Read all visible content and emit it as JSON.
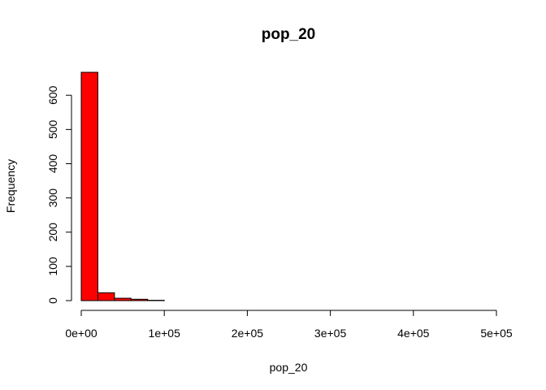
{
  "chart_data": {
    "type": "bar",
    "title": "pop_20",
    "xlabel": "pop_20",
    "ylabel": "Frequency",
    "bin_width": 20000,
    "bins": [
      {
        "start": 0,
        "end": 20000,
        "count": 667
      },
      {
        "start": 20000,
        "end": 40000,
        "count": 23
      },
      {
        "start": 40000,
        "end": 60000,
        "count": 7
      },
      {
        "start": 60000,
        "end": 80000,
        "count": 4
      },
      {
        "start": 80000,
        "end": 100000,
        "count": 1
      },
      {
        "start": 100000,
        "end": 120000,
        "count": 0
      },
      {
        "start": 120000,
        "end": 140000,
        "count": 0
      },
      {
        "start": 140000,
        "end": 160000,
        "count": 0
      },
      {
        "start": 160000,
        "end": 180000,
        "count": 0
      },
      {
        "start": 180000,
        "end": 200000,
        "count": 0
      },
      {
        "start": 200000,
        "end": 220000,
        "count": 0
      },
      {
        "start": 220000,
        "end": 240000,
        "count": 0
      },
      {
        "start": 240000,
        "end": 260000,
        "count": 0
      },
      {
        "start": 260000,
        "end": 280000,
        "count": 0
      },
      {
        "start": 280000,
        "end": 300000,
        "count": 0
      },
      {
        "start": 300000,
        "end": 320000,
        "count": 0
      },
      {
        "start": 320000,
        "end": 340000,
        "count": 0
      },
      {
        "start": 340000,
        "end": 360000,
        "count": 0
      },
      {
        "start": 360000,
        "end": 380000,
        "count": 0
      },
      {
        "start": 380000,
        "end": 400000,
        "count": 0
      },
      {
        "start": 400000,
        "end": 420000,
        "count": 0
      },
      {
        "start": 420000,
        "end": 440000,
        "count": 0
      },
      {
        "start": 440000,
        "end": 460000,
        "count": 0
      },
      {
        "start": 460000,
        "end": 480000,
        "count": 0
      },
      {
        "start": 480000,
        "end": 500000,
        "count": 0
      }
    ],
    "xlim": [
      0,
      500000
    ],
    "ylim": [
      0,
      667
    ],
    "x_ticks": [
      {
        "value": 0,
        "label": "0e+00"
      },
      {
        "value": 100000,
        "label": "1e+05"
      },
      {
        "value": 200000,
        "label": "2e+05"
      },
      {
        "value": 300000,
        "label": "3e+05"
      },
      {
        "value": 400000,
        "label": "4e+05"
      },
      {
        "value": 500000,
        "label": "5e+05"
      }
    ],
    "y_ticks": [
      {
        "value": 0,
        "label": "0"
      },
      {
        "value": 100,
        "label": "100"
      },
      {
        "value": 200,
        "label": "200"
      },
      {
        "value": 300,
        "label": "300"
      },
      {
        "value": 400,
        "label": "400"
      },
      {
        "value": 500,
        "label": "500"
      },
      {
        "value": 600,
        "label": "600"
      }
    ],
    "bar_color": "#ff0000",
    "grid": false,
    "legend": "none"
  }
}
